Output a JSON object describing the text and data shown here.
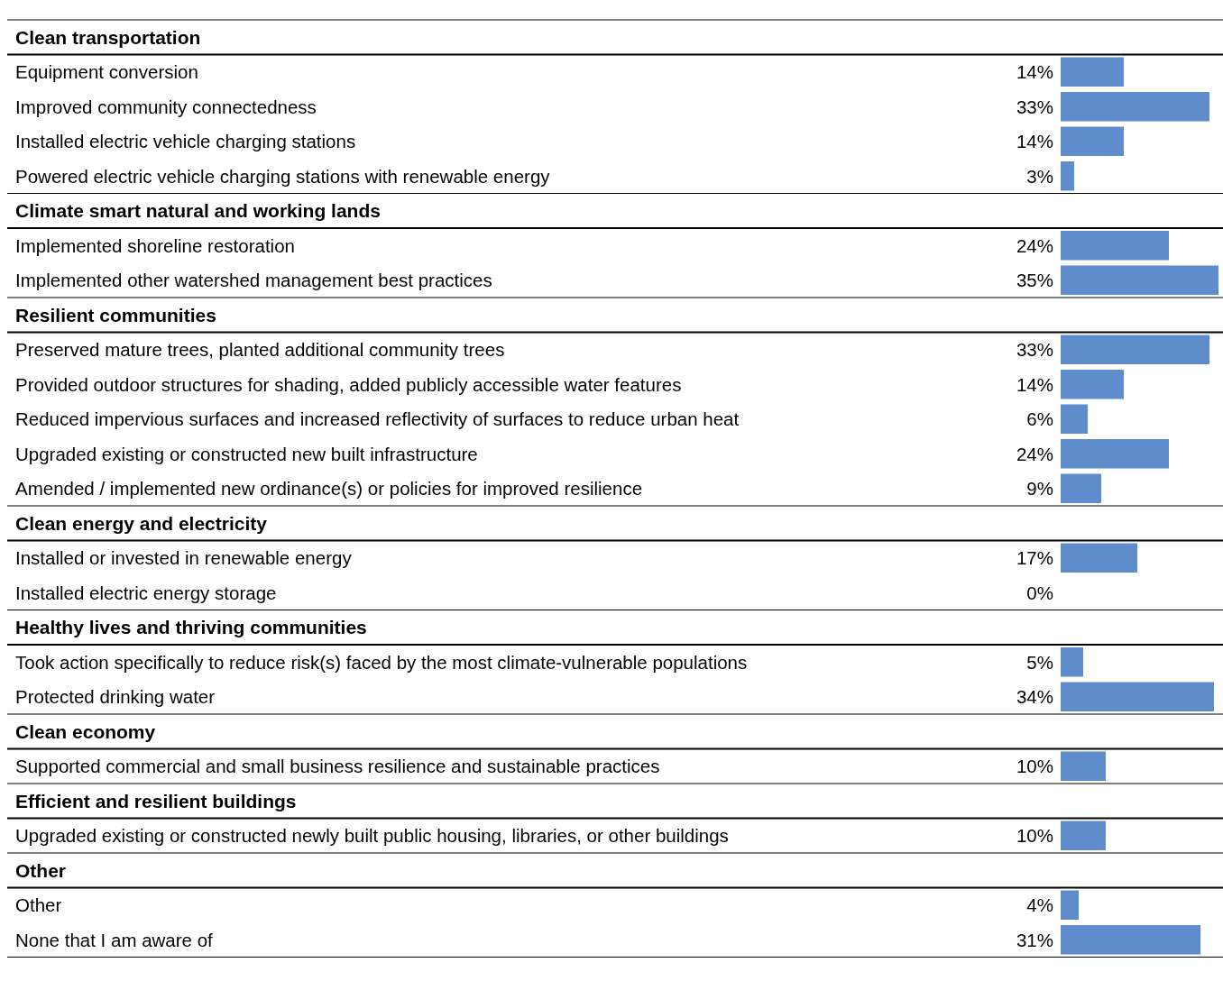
{
  "chart_data": {
    "type": "bar",
    "orientation": "horizontal",
    "color": "#5f8dcb",
    "categories": [
      "Clean transportation",
      "Equipment conversion",
      "Improved community connectedness",
      "Installed electric vehicle charging stations",
      "Powered electric vehicle charging stations with renewable energy",
      "Climate smart natural and working lands",
      "Implemented shoreline restoration",
      "Implemented other watershed management best practices",
      "Resilient communities",
      "Preserved mature trees, planted additional community trees",
      "Provided outdoor structures for shading, added publicly accessible water features",
      "Reduced impervious surfaces and increased reflectivity of surfaces to reduce urban heat",
      "Upgraded existing or constructed new built infrastructure",
      "Amended / implemented new ordinance(s) or policies for improved resilience",
      "Clean energy and electricity",
      "Installed or invested in renewable energy",
      "Installed electric energy storage",
      "Healthy lives and thriving communities",
      "Took action specifically to reduce risk(s) faced by the most climate-vulnerable populations",
      "Protected drinking water",
      "Clean economy",
      "Supported commercial and small business resilience and sustainable practices",
      "Efficient and resilient buildings",
      "Upgraded existing or constructed newly built public housing, libraries, or other buildings",
      "Other",
      "Other",
      "None that I am aware of"
    ],
    "values": [
      null,
      14,
      33,
      14,
      3,
      null,
      24,
      35,
      null,
      33,
      14,
      6,
      24,
      9,
      null,
      17,
      0,
      null,
      5,
      34,
      null,
      10,
      null,
      10,
      null,
      4,
      31
    ],
    "value_labels": [
      null,
      "14%",
      "33%",
      "14%",
      "3%",
      null,
      "24%",
      "35%",
      null,
      "33%",
      "14%",
      "6%",
      "24%",
      "9%",
      null,
      "17%",
      "0%",
      null,
      "5%",
      "34%",
      null,
      "10%",
      null,
      "10%",
      null,
      "4%",
      "31%"
    ]
  }
}
